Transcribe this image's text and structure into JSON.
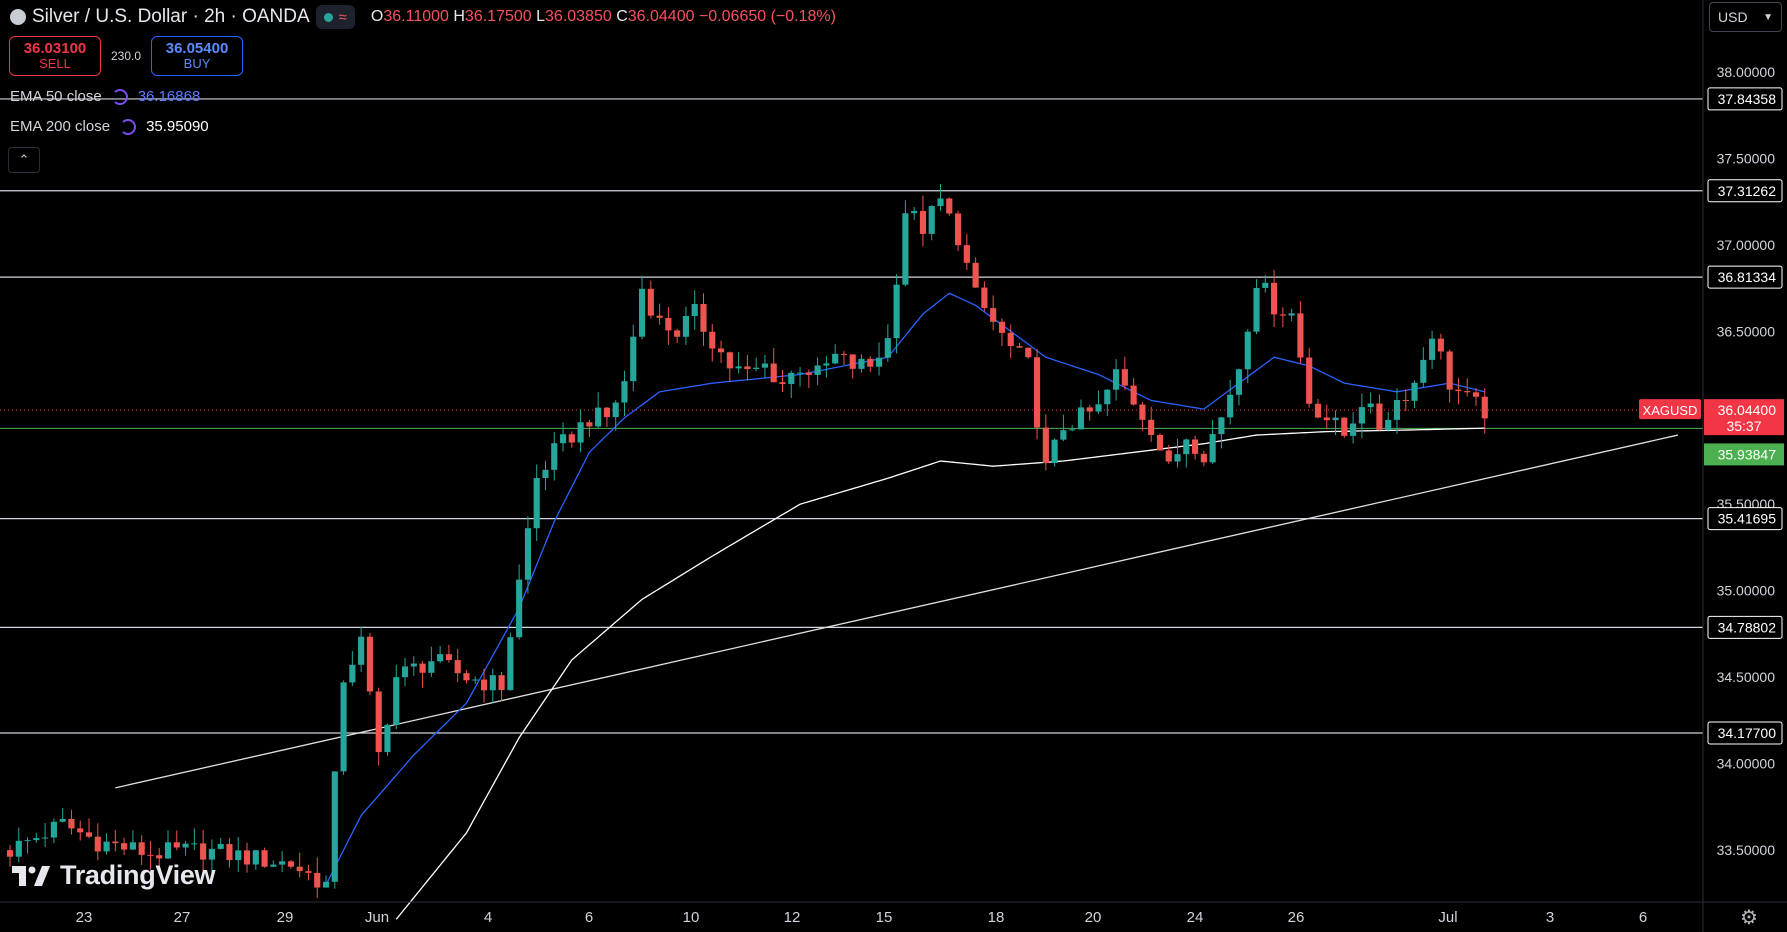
{
  "header": {
    "symbol_title": "Silver / U.S. Dollar · 2h · OANDA",
    "ohlc": [
      {
        "label": "O",
        "value": "36.11000"
      },
      {
        "label": "H",
        "value": "36.17500"
      },
      {
        "label": "L",
        "value": "36.03850"
      },
      {
        "label": "C",
        "value": "36.04400"
      }
    ],
    "change": "−0.06650 (−0.18%)"
  },
  "trade": {
    "sell_price": "36.03100",
    "sell_label": "SELL",
    "spread": "230.0",
    "buy_price": "36.05400",
    "buy_label": "BUY"
  },
  "legend": {
    "ema50_label": "EMA 50 close",
    "ema50_value": "36.16868",
    "ema200_label": "EMA 200 close",
    "ema200_value": "35.95090"
  },
  "currency": {
    "selected": "USD"
  },
  "brand": {
    "name": "TradingView"
  },
  "colors": {
    "up": "#26a69a",
    "down": "#ef5350",
    "ema50": "#2962ff",
    "ema200": "#ffffff",
    "current_price": "#f23645",
    "ema200_badge": "#4caf50"
  },
  "icons": [
    "logo-icon",
    "settings-gear-icon",
    "chevron-down-icon",
    "collapse-chevron-icon",
    "indicator-swirl-icon"
  ],
  "chart_data": {
    "type": "candlestick",
    "title": "Silver / U.S. Dollar · 2h · OANDA",
    "ylim": [
      33.2,
      38.3
    ],
    "y_ticks": [
      "38.00000",
      "37.50000",
      "37.00000",
      "36.50000",
      "35.50000",
      "35.00000",
      "34.50000",
      "34.00000",
      "33.50000"
    ],
    "x_ticks": [
      "23",
      "27",
      "29",
      "Jun",
      "4",
      "6",
      "10",
      "12",
      "15",
      "18",
      "20",
      "24",
      "26",
      "Jul",
      "3",
      "6"
    ],
    "current_price": {
      "symbol": "XAGUSD",
      "value": "36.04400",
      "countdown": "35:37"
    },
    "ema200_marker": "35.93847",
    "horizontal_levels": [
      "37.84358",
      "37.31262",
      "36.81334",
      "35.41695",
      "34.78802",
      "34.17700"
    ],
    "trendline": {
      "start_index": 12,
      "start_price": 33.86,
      "end_index": 190,
      "end_price": 35.9
    },
    "close_path": [
      [
        0,
        33.5
      ],
      [
        6,
        33.65
      ],
      [
        10,
        33.55
      ],
      [
        16,
        33.48
      ],
      [
        22,
        33.5
      ],
      [
        28,
        33.45
      ],
      [
        32,
        33.42
      ],
      [
        36,
        33.3
      ],
      [
        38,
        34.5
      ],
      [
        40,
        34.7
      ],
      [
        42,
        34.05
      ],
      [
        44,
        34.5
      ],
      [
        48,
        34.6
      ],
      [
        52,
        34.5
      ],
      [
        56,
        34.45
      ],
      [
        58,
        35.05
      ],
      [
        60,
        35.65
      ],
      [
        62,
        35.8
      ],
      [
        64,
        35.9
      ],
      [
        66,
        36.0
      ],
      [
        68,
        36.0
      ],
      [
        70,
        36.2
      ],
      [
        72,
        36.75
      ],
      [
        74,
        36.55
      ],
      [
        76,
        36.5
      ],
      [
        78,
        36.6
      ],
      [
        80,
        36.45
      ],
      [
        82,
        36.3
      ],
      [
        84,
        36.25
      ],
      [
        86,
        36.3
      ],
      [
        88,
        36.2
      ],
      [
        90,
        36.3
      ],
      [
        92,
        36.25
      ],
      [
        94,
        36.35
      ],
      [
        96,
        36.3
      ],
      [
        98,
        36.3
      ],
      [
        100,
        36.45
      ],
      [
        102,
        37.2
      ],
      [
        104,
        37.1
      ],
      [
        106,
        37.25
      ],
      [
        108,
        37.05
      ],
      [
        110,
        36.7
      ],
      [
        112,
        36.55
      ],
      [
        114,
        36.4
      ],
      [
        116,
        36.3
      ],
      [
        118,
        35.7
      ],
      [
        120,
        35.95
      ],
      [
        122,
        36.0
      ],
      [
        124,
        36.05
      ],
      [
        126,
        36.25
      ],
      [
        128,
        36.1
      ],
      [
        130,
        35.95
      ],
      [
        132,
        35.7
      ],
      [
        134,
        35.9
      ],
      [
        136,
        35.8
      ],
      [
        138,
        36.0
      ],
      [
        140,
        36.3
      ],
      [
        142,
        36.8
      ],
      [
        144,
        36.65
      ],
      [
        146,
        36.6
      ],
      [
        148,
        36.1
      ],
      [
        150,
        36.0
      ],
      [
        152,
        35.9
      ],
      [
        154,
        36.1
      ],
      [
        156,
        35.95
      ],
      [
        158,
        36.1
      ],
      [
        160,
        36.2
      ],
      [
        162,
        36.5
      ],
      [
        164,
        36.2
      ],
      [
        166,
        36.1
      ],
      [
        168,
        36.04
      ]
    ],
    "ema50_path": [
      [
        36,
        33.3
      ],
      [
        40,
        33.7
      ],
      [
        46,
        34.05
      ],
      [
        52,
        34.35
      ],
      [
        58,
        34.9
      ],
      [
        62,
        35.4
      ],
      [
        66,
        35.8
      ],
      [
        70,
        36.0
      ],
      [
        74,
        36.15
      ],
      [
        80,
        36.2
      ],
      [
        90,
        36.25
      ],
      [
        100,
        36.35
      ],
      [
        104,
        36.6
      ],
      [
        107,
        36.72
      ],
      [
        110,
        36.65
      ],
      [
        114,
        36.5
      ],
      [
        118,
        36.35
      ],
      [
        124,
        36.25
      ],
      [
        130,
        36.1
      ],
      [
        136,
        36.05
      ],
      [
        140,
        36.2
      ],
      [
        144,
        36.35
      ],
      [
        148,
        36.3
      ],
      [
        152,
        36.2
      ],
      [
        158,
        36.15
      ],
      [
        164,
        36.2
      ],
      [
        168,
        36.15
      ]
    ],
    "ema200_path": [
      [
        44,
        33.1
      ],
      [
        52,
        33.6
      ],
      [
        58,
        34.15
      ],
      [
        64,
        34.6
      ],
      [
        72,
        34.95
      ],
      [
        80,
        35.2
      ],
      [
        90,
        35.5
      ],
      [
        100,
        35.65
      ],
      [
        106,
        35.75
      ],
      [
        112,
        35.72
      ],
      [
        120,
        35.75
      ],
      [
        128,
        35.8
      ],
      [
        136,
        35.85
      ],
      [
        142,
        35.9
      ],
      [
        150,
        35.92
      ],
      [
        160,
        35.93
      ],
      [
        168,
        35.94
      ]
    ]
  }
}
